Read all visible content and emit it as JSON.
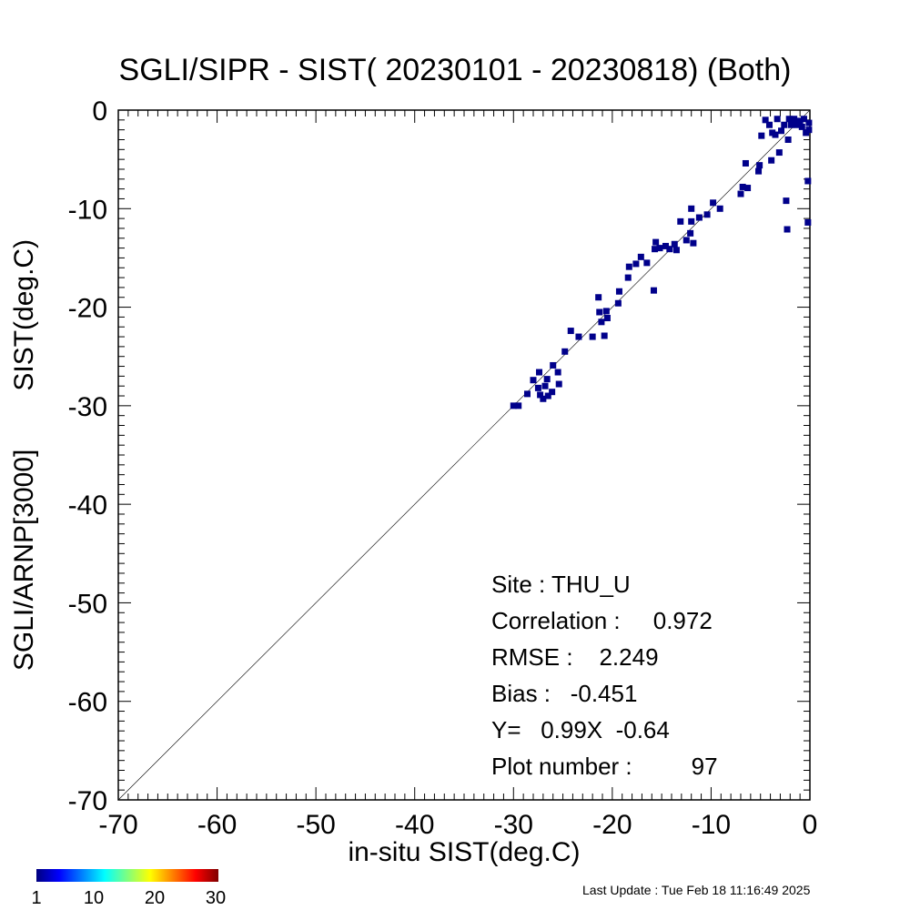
{
  "chart_data": {
    "type": "scatter",
    "title": "SGLI/SIPR - SIST( 20230101 - 20230818) (Both)",
    "xlabel": "in-situ SIST(deg.C)",
    "ylabel_parts": [
      "SGLI/ARNP[3000]",
      "SIST(deg.C)"
    ],
    "xlim": [
      -70,
      0
    ],
    "ylim": [
      -70,
      0
    ],
    "xticks": [
      "-70",
      "-60",
      "-50",
      "-40",
      "-30",
      "-20",
      "-10",
      "0"
    ],
    "yticks": [
      "0",
      "-10",
      "-20",
      "-30",
      "-40",
      "-50",
      "-60",
      "-70"
    ],
    "one_to_one_line": true,
    "marker_color": "#00008b",
    "points": [
      {
        "x": -30.0,
        "y": -30.0
      },
      {
        "x": -29.5,
        "y": -30.0
      },
      {
        "x": -28.6,
        "y": -28.8
      },
      {
        "x": -28.0,
        "y": -27.4
      },
      {
        "x": -27.5,
        "y": -28.2
      },
      {
        "x": -27.4,
        "y": -26.6
      },
      {
        "x": -27.3,
        "y": -28.9
      },
      {
        "x": -27.0,
        "y": -29.3
      },
      {
        "x": -26.8,
        "y": -28.0
      },
      {
        "x": -26.6,
        "y": -27.3
      },
      {
        "x": -26.5,
        "y": -29.0
      },
      {
        "x": -26.1,
        "y": -28.6
      },
      {
        "x": -26.0,
        "y": -25.9
      },
      {
        "x": -25.5,
        "y": -26.6
      },
      {
        "x": -25.4,
        "y": -27.8
      },
      {
        "x": -24.8,
        "y": -24.5
      },
      {
        "x": -24.2,
        "y": -22.4
      },
      {
        "x": -23.4,
        "y": -23.0
      },
      {
        "x": -22.0,
        "y": -23.0
      },
      {
        "x": -21.4,
        "y": -19.0
      },
      {
        "x": -21.3,
        "y": -20.5
      },
      {
        "x": -21.1,
        "y": -21.5
      },
      {
        "x": -20.8,
        "y": -22.9
      },
      {
        "x": -20.6,
        "y": -20.4
      },
      {
        "x": -20.5,
        "y": -21.1
      },
      {
        "x": -19.4,
        "y": -19.6
      },
      {
        "x": -19.3,
        "y": -18.4
      },
      {
        "x": -18.4,
        "y": -17.0
      },
      {
        "x": -18.3,
        "y": -15.9
      },
      {
        "x": -17.6,
        "y": -15.6
      },
      {
        "x": -17.1,
        "y": -14.9
      },
      {
        "x": -16.5,
        "y": -15.5
      },
      {
        "x": -15.8,
        "y": -18.3
      },
      {
        "x": -15.7,
        "y": -14.1
      },
      {
        "x": -15.6,
        "y": -13.4
      },
      {
        "x": -15.2,
        "y": -14.0
      },
      {
        "x": -14.6,
        "y": -13.8
      },
      {
        "x": -14.2,
        "y": -14.1
      },
      {
        "x": -13.7,
        "y": -13.6
      },
      {
        "x": -13.5,
        "y": -14.2
      },
      {
        "x": -13.1,
        "y": -11.3
      },
      {
        "x": -12.5,
        "y": -13.2
      },
      {
        "x": -12.1,
        "y": -12.5
      },
      {
        "x": -12.0,
        "y": -11.3
      },
      {
        "x": -12.0,
        "y": -10.0
      },
      {
        "x": -11.8,
        "y": -13.5
      },
      {
        "x": -11.2,
        "y": -10.9
      },
      {
        "x": -10.4,
        "y": -10.6
      },
      {
        "x": -9.8,
        "y": -9.4
      },
      {
        "x": -9.1,
        "y": -10.0
      },
      {
        "x": -7.0,
        "y": -8.5
      },
      {
        "x": -6.8,
        "y": -7.8
      },
      {
        "x": -6.5,
        "y": -5.4
      },
      {
        "x": -6.3,
        "y": -7.9
      },
      {
        "x": -5.2,
        "y": -6.2
      },
      {
        "x": -5.1,
        "y": -5.6
      },
      {
        "x": -4.9,
        "y": -2.6
      },
      {
        "x": -4.5,
        "y": -1.0
      },
      {
        "x": -4.1,
        "y": -1.5
      },
      {
        "x": -3.9,
        "y": -5.1
      },
      {
        "x": -3.8,
        "y": -2.3
      },
      {
        "x": -3.5,
        "y": -2.5
      },
      {
        "x": -3.3,
        "y": -0.9
      },
      {
        "x": -3.1,
        "y": -4.3
      },
      {
        "x": -2.9,
        "y": -2.1
      },
      {
        "x": -2.6,
        "y": -1.5
      },
      {
        "x": -2.4,
        "y": -9.2
      },
      {
        "x": -2.3,
        "y": -12.1
      },
      {
        "x": -2.2,
        "y": -3.0
      },
      {
        "x": -2.1,
        "y": -0.9
      },
      {
        "x": -1.9,
        "y": -1.5
      },
      {
        "x": -1.6,
        "y": -0.9
      },
      {
        "x": -1.3,
        "y": -1.5
      },
      {
        "x": -1.0,
        "y": -1.1
      },
      {
        "x": -0.8,
        "y": -1.7
      },
      {
        "x": -0.6,
        "y": -0.9
      },
      {
        "x": -0.4,
        "y": -2.3
      },
      {
        "x": -0.2,
        "y": -11.4
      },
      {
        "x": -0.2,
        "y": -7.2
      },
      {
        "x": -0.1,
        "y": -1.3
      },
      {
        "x": -0.1,
        "y": -2.0
      }
    ]
  },
  "stats": {
    "site": "Site : THU_U",
    "correlation": "Correlation :     0.972",
    "rmse": "RMSE :    2.249",
    "bias": "Bias :   -0.451",
    "fit": "Y=   0.99X  -0.64",
    "plot_number": "Plot number :         97"
  },
  "colorbar": {
    "ticks": [
      "1",
      "10",
      "20",
      "30"
    ]
  },
  "footer": "Last Update : Tue Feb 18 11:16:49 2025"
}
